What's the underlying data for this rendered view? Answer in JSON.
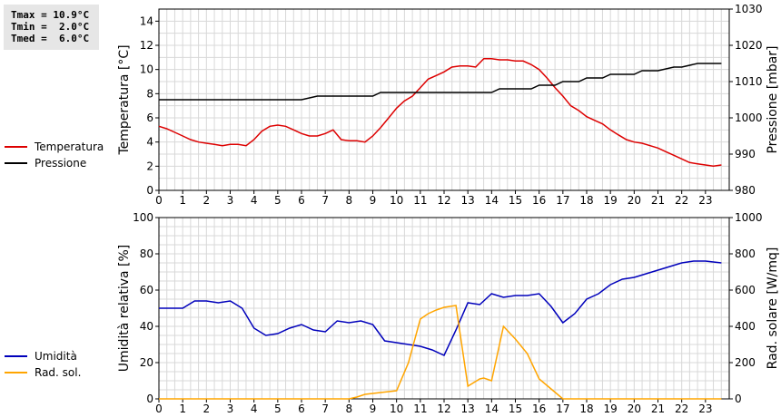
{
  "stats": {
    "tmax": "Tmax = 10.9°C",
    "tmin": "Tmin =  2.0°C",
    "tmed": "Tmed =  6.0°C"
  },
  "colors": {
    "temperature": "#dd0000",
    "pressure": "#000000",
    "humidity": "#0000bb",
    "radiation": "#ffa500",
    "grid": "#d8d8d8"
  },
  "chart_data": [
    {
      "type": "line",
      "xlabel": "",
      "ylabel": "Temperatura [°C]",
      "ylabel_right": "Pressione [mbar]",
      "xlim": [
        0,
        24
      ],
      "ylim": [
        0,
        15
      ],
      "ylim_right": [
        980,
        1030
      ],
      "x_ticks": [
        "0",
        "1",
        "2",
        "3",
        "4",
        "5",
        "6",
        "7",
        "8",
        "9",
        "10",
        "11",
        "12",
        "13",
        "14",
        "15",
        "16",
        "17",
        "18",
        "19",
        "20",
        "21",
        "22",
        "23"
      ],
      "y_ticks": [
        "0",
        "2",
        "4",
        "6",
        "8",
        "10",
        "12",
        "14"
      ],
      "y_ticks_right": [
        "980",
        "990",
        "1000",
        "1010",
        "1020",
        "1030"
      ],
      "grid": true,
      "legend_position": "left",
      "series": [
        {
          "name": "Temperatura",
          "axis": "left",
          "x": [
            0,
            0.33,
            0.67,
            1,
            1.33,
            1.67,
            2,
            2.33,
            2.67,
            3,
            3.33,
            3.67,
            4,
            4.33,
            4.67,
            5,
            5.33,
            5.67,
            6,
            6.33,
            6.67,
            7,
            7.33,
            7.67,
            8,
            8.33,
            8.67,
            9,
            9.33,
            9.67,
            10,
            10.33,
            10.67,
            11,
            11.33,
            11.67,
            12,
            12.33,
            12.67,
            13,
            13.33,
            13.67,
            14,
            14.33,
            14.67,
            15,
            15.33,
            15.67,
            16,
            16.33,
            16.67,
            17,
            17.33,
            17.67,
            18,
            18.33,
            18.67,
            19,
            19.33,
            19.67,
            20,
            20.33,
            20.67,
            21,
            21.33,
            21.67,
            22,
            22.33,
            22.67,
            23,
            23.33,
            23.67
          ],
          "values": [
            5.3,
            5.1,
            4.8,
            4.5,
            4.2,
            4.0,
            3.9,
            3.8,
            3.7,
            3.8,
            3.8,
            3.7,
            4.2,
            4.9,
            5.3,
            5.4,
            5.3,
            5.0,
            4.7,
            4.5,
            4.5,
            4.7,
            5.0,
            4.2,
            4.1,
            4.1,
            4.0,
            4.5,
            5.2,
            6.0,
            6.8,
            7.4,
            7.8,
            8.5,
            9.2,
            9.5,
            9.8,
            10.2,
            10.3,
            10.3,
            10.2,
            10.9,
            10.9,
            10.8,
            10.8,
            10.7,
            10.7,
            10.4,
            10.0,
            9.3,
            8.5,
            7.8,
            7.0,
            6.6,
            6.1,
            5.8,
            5.5,
            5.0,
            4.6,
            4.2,
            4.0,
            3.9,
            3.7,
            3.5,
            3.2,
            2.9,
            2.6,
            2.3,
            2.2,
            2.1,
            2.0,
            2.1
          ]
        },
        {
          "name": "Pressione",
          "axis": "right",
          "x": [
            0,
            1,
            2,
            3,
            4,
            5,
            6,
            6.67,
            7,
            8,
            9,
            9.33,
            10,
            11,
            12,
            13,
            14,
            14.33,
            15,
            15.67,
            16,
            16.67,
            17,
            17.67,
            18,
            18.67,
            19,
            20,
            20.33,
            21,
            21.67,
            22,
            22.67,
            23,
            23.67
          ],
          "values": [
            1005,
            1005,
            1005,
            1005,
            1005,
            1005,
            1005,
            1006,
            1006,
            1006,
            1006,
            1007,
            1007,
            1007,
            1007,
            1007,
            1007,
            1008,
            1008,
            1008,
            1009,
            1009,
            1010,
            1010,
            1011,
            1011,
            1012,
            1012,
            1013,
            1013,
            1014,
            1014,
            1015,
            1015,
            1015
          ]
        }
      ]
    },
    {
      "type": "line",
      "xlabel": "",
      "ylabel": "Umidità relativa [%]",
      "ylabel_right": "Rad. solare [W/mq]",
      "xlim": [
        0,
        24
      ],
      "ylim": [
        0,
        100
      ],
      "ylim_right": [
        0,
        1000
      ],
      "x_ticks": [
        "0",
        "1",
        "2",
        "3",
        "4",
        "5",
        "6",
        "7",
        "8",
        "9",
        "10",
        "11",
        "12",
        "13",
        "14",
        "15",
        "16",
        "17",
        "18",
        "19",
        "20",
        "21",
        "22",
        "23"
      ],
      "y_ticks": [
        "0",
        "20",
        "40",
        "60",
        "80",
        "100"
      ],
      "y_ticks_right": [
        "0",
        "200",
        "400",
        "600",
        "800",
        "1000"
      ],
      "grid": true,
      "legend_position": "left",
      "series": [
        {
          "name": "Umidità",
          "axis": "left",
          "x": [
            0,
            0.5,
            1,
            1.5,
            2,
            2.5,
            3,
            3.5,
            4,
            4.5,
            5,
            5.5,
            6,
            6.5,
            7,
            7.5,
            8,
            8.5,
            9,
            9.5,
            10,
            10.5,
            11,
            11.5,
            12,
            12.5,
            13,
            13.5,
            14,
            14.5,
            15,
            15.5,
            16,
            16.5,
            17,
            17.5,
            18,
            18.5,
            19,
            19.5,
            20,
            20.5,
            21,
            21.5,
            22,
            22.5,
            23,
            23.67
          ],
          "values": [
            50,
            50,
            50,
            54,
            54,
            53,
            54,
            50,
            39,
            35,
            36,
            39,
            41,
            38,
            37,
            43,
            42,
            43,
            41,
            32,
            31,
            30,
            29,
            27,
            24,
            38,
            53,
            52,
            58,
            56,
            57,
            57,
            58,
            51,
            42,
            47,
            55,
            58,
            63,
            66,
            67,
            69,
            71,
            73,
            75,
            76,
            76,
            75
          ]
        },
        {
          "name": "Rad. sol.",
          "axis": "right",
          "x": [
            0,
            1,
            2,
            3,
            4,
            5,
            6,
            7,
            7.67,
            8,
            8.33,
            8.67,
            9,
            9.33,
            9.67,
            10,
            10.5,
            11,
            11.33,
            11.67,
            12,
            12.5,
            13,
            13.5,
            13.67,
            14,
            14.5,
            15,
            15.5,
            16,
            16.5,
            17,
            17.5,
            18,
            19,
            20,
            21,
            22,
            23,
            23.67
          ],
          "values": [
            0,
            0,
            0,
            0,
            0,
            0,
            0,
            0,
            0,
            0,
            10,
            25,
            30,
            35,
            40,
            45,
            200,
            440,
            470,
            490,
            505,
            515,
            70,
            110,
            115,
            100,
            400,
            330,
            250,
            110,
            55,
            0,
            0,
            0,
            0,
            0,
            0,
            0,
            0,
            0
          ]
        }
      ]
    }
  ]
}
